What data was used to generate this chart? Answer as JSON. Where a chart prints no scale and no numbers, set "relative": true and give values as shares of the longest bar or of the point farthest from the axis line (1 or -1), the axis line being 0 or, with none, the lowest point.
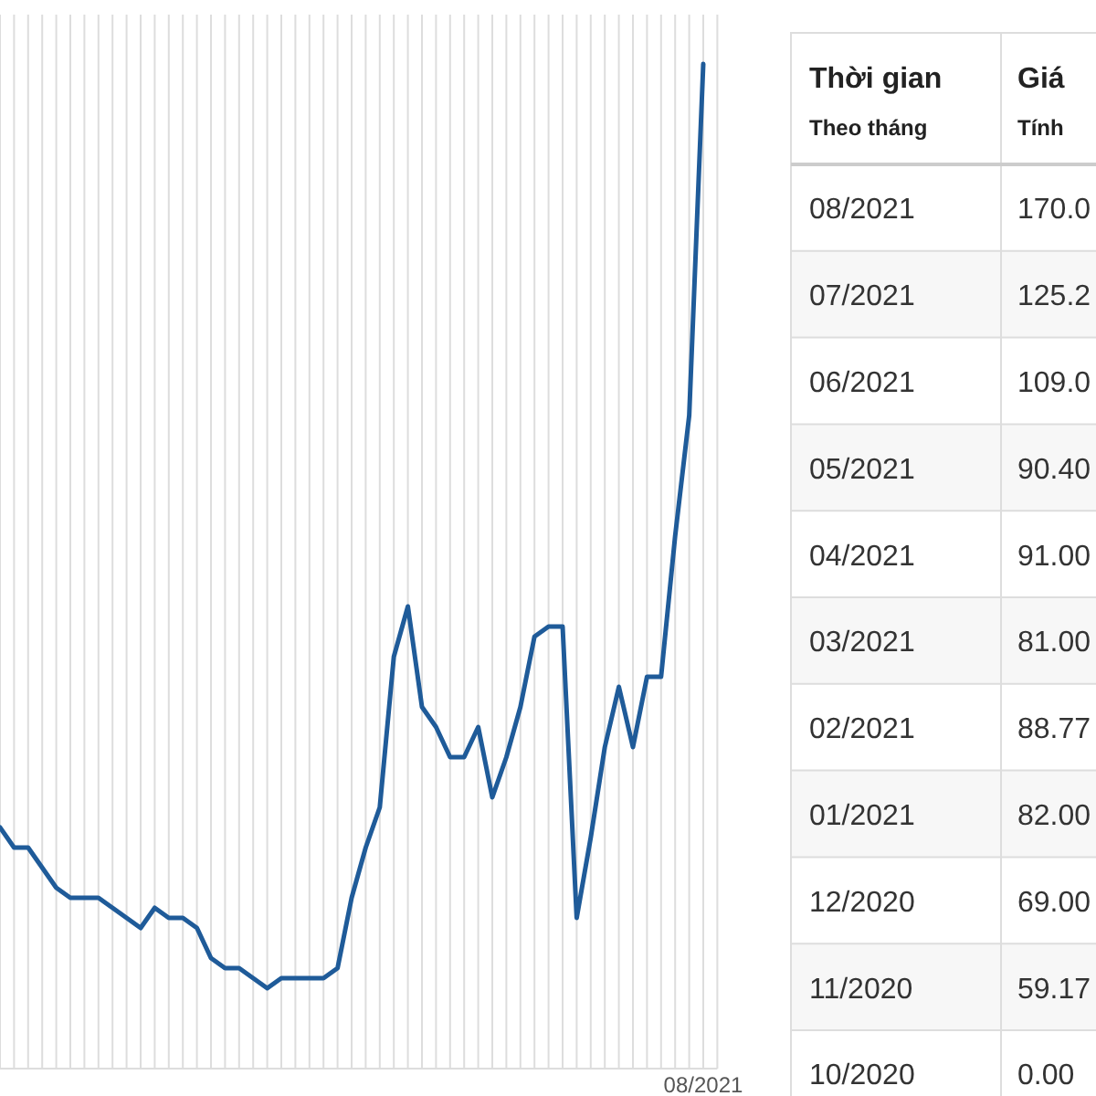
{
  "chart_data": [
    {
      "type": "line",
      "relative": true,
      "grid": "x",
      "marker": "none",
      "line_style": "solid",
      "annotations": [
        "08/2021"
      ],
      "categories": [
        null,
        null,
        null,
        null,
        null,
        null,
        null,
        null,
        null,
        null,
        null,
        null,
        null,
        null,
        null,
        null,
        null,
        null,
        null,
        null,
        null,
        null,
        null,
        null,
        null,
        null,
        null,
        null,
        null,
        null,
        null,
        null,
        null,
        null,
        null,
        null,
        null,
        null,
        null,
        null,
        null,
        null,
        null,
        null,
        null,
        null,
        null,
        null,
        null,
        null,
        null
      ],
      "series": [
        {
          "color": "#1f5b99",
          "values": [
            0.24,
            0.22,
            0.22,
            0.2,
            0.18,
            0.17,
            0.17,
            0.17,
            0.16,
            0.15,
            0.14,
            0.16,
            0.15,
            0.15,
            0.14,
            0.11,
            0.1,
            0.1,
            0.09,
            0.08,
            0.09,
            0.09,
            0.09,
            0.09,
            0.1,
            0.17,
            0.22,
            0.26,
            0.41,
            0.46,
            0.36,
            0.34,
            0.31,
            0.31,
            0.34,
            0.27,
            0.31,
            0.36,
            0.43,
            0.44,
            0.44,
            0.15,
            0.23,
            0.32,
            0.38,
            0.32,
            0.39,
            0.39,
            0.53,
            0.65,
            1
          ]
        }
      ]
    },
    {
      "type": "other",
      "annotations": [
        "Thời gian",
        "Giá",
        "Theo tháng",
        "Tính",
        "08/2021",
        "170.0",
        "07/2021",
        "125.2",
        "06/2021",
        "109.0",
        "05/2021",
        "90.40",
        "04/2021",
        "91.00",
        "03/2021",
        "81.00",
        "02/2021",
        "88.77",
        "01/2021",
        "82.00",
        "12/2020",
        "69.00",
        "11/2020",
        "59.17",
        "10/2020",
        "0.00"
      ]
    }
  ]
}
